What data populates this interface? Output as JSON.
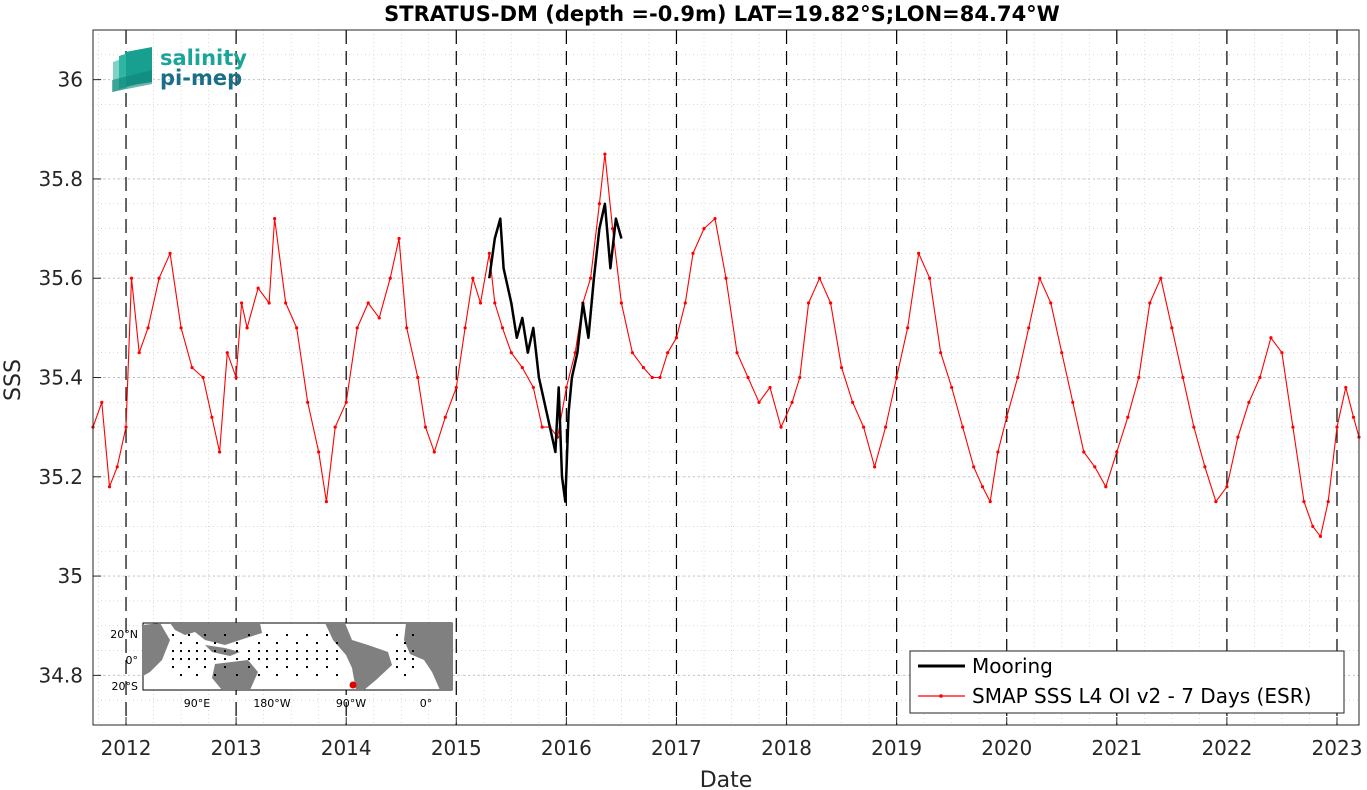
{
  "chart_data": {
    "type": "line",
    "title": "STRATUS-DM (depth =-0.9m) LAT=19.82°S;LON=84.74°W",
    "xlabel": "Date",
    "ylabel": "SSS",
    "xlim": [
      2011.7,
      2023.2
    ],
    "ylim": [
      34.7,
      36.1
    ],
    "x_ticks": [
      2012,
      2013,
      2014,
      2015,
      2016,
      2017,
      2018,
      2019,
      2020,
      2021,
      2022,
      2023
    ],
    "x_tick_labels": [
      "2012",
      "2013",
      "2014",
      "2015",
      "2016",
      "2017",
      "2018",
      "2019",
      "2020",
      "2021",
      "2022",
      "2023"
    ],
    "y_ticks": [
      34.8,
      35,
      35.2,
      35.4,
      35.6,
      35.8,
      36
    ],
    "y_tick_labels": [
      "34.8",
      "35",
      "35.2",
      "35.4",
      "35.6",
      "35.8",
      "36"
    ],
    "grid": true,
    "year_lines": "dashed",
    "legend_position": "bottom-right",
    "series": [
      {
        "name": "Mooring",
        "color": "#000000",
        "x": [
          2015.3,
          2015.35,
          2015.4,
          2015.43,
          2015.47,
          2015.5,
          2015.55,
          2015.6,
          2015.65,
          2015.7,
          2015.75,
          2015.8,
          2015.85,
          2015.9,
          2015.93,
          2015.96,
          2015.99,
          2016.02,
          2016.05,
          2016.1,
          2016.15,
          2016.2,
          2016.25,
          2016.3,
          2016.35,
          2016.4,
          2016.45,
          2016.5
        ],
        "y": [
          35.6,
          35.68,
          35.72,
          35.62,
          35.58,
          35.55,
          35.48,
          35.52,
          35.45,
          35.5,
          35.4,
          35.35,
          35.3,
          35.25,
          35.38,
          35.2,
          35.15,
          35.33,
          35.4,
          35.45,
          35.55,
          35.48,
          35.6,
          35.7,
          35.75,
          35.62,
          35.72,
          35.68
        ]
      },
      {
        "name": "SMAP SSS L4 OI v2 - 7 Days (ESR)",
        "color": "#ff0000",
        "x": [
          2011.7,
          2011.78,
          2011.85,
          2011.92,
          2012.0,
          2012.05,
          2012.12,
          2012.2,
          2012.3,
          2012.4,
          2012.5,
          2012.6,
          2012.7,
          2012.78,
          2012.85,
          2012.92,
          2013.0,
          2013.05,
          2013.1,
          2013.2,
          2013.3,
          2013.35,
          2013.45,
          2013.55,
          2013.65,
          2013.75,
          2013.82,
          2013.9,
          2014.0,
          2014.1,
          2014.2,
          2014.3,
          2014.4,
          2014.48,
          2014.55,
          2014.65,
          2014.72,
          2014.8,
          2014.9,
          2015.0,
          2015.08,
          2015.15,
          2015.22,
          2015.3,
          2015.35,
          2015.42,
          2015.5,
          2015.6,
          2015.7,
          2015.78,
          2015.85,
          2015.92,
          2016.0,
          2016.08,
          2016.15,
          2016.22,
          2016.3,
          2016.35,
          2016.42,
          2016.5,
          2016.6,
          2016.7,
          2016.78,
          2016.85,
          2016.92,
          2017.0,
          2017.08,
          2017.15,
          2017.25,
          2017.35,
          2017.45,
          2017.55,
          2017.65,
          2017.75,
          2017.85,
          2017.95,
          2018.05,
          2018.12,
          2018.2,
          2018.3,
          2018.4,
          2018.5,
          2018.6,
          2018.7,
          2018.8,
          2018.9,
          2019.0,
          2019.1,
          2019.2,
          2019.3,
          2019.4,
          2019.5,
          2019.6,
          2019.7,
          2019.78,
          2019.85,
          2019.92,
          2020.0,
          2020.1,
          2020.2,
          2020.3,
          2020.4,
          2020.5,
          2020.6,
          2020.7,
          2020.8,
          2020.9,
          2021.0,
          2021.1,
          2021.2,
          2021.3,
          2021.4,
          2021.5,
          2021.6,
          2021.7,
          2021.8,
          2021.9,
          2022.0,
          2022.1,
          2022.2,
          2022.3,
          2022.4,
          2022.5,
          2022.6,
          2022.7,
          2022.78,
          2022.85,
          2022.92,
          2023.0,
          2023.08,
          2023.15,
          2023.2
        ],
        "y": [
          35.3,
          35.35,
          35.18,
          35.22,
          35.3,
          35.6,
          35.45,
          35.5,
          35.6,
          35.65,
          35.5,
          35.42,
          35.4,
          35.32,
          35.25,
          35.45,
          35.4,
          35.55,
          35.5,
          35.58,
          35.55,
          35.72,
          35.55,
          35.5,
          35.35,
          35.25,
          35.15,
          35.3,
          35.35,
          35.5,
          35.55,
          35.52,
          35.6,
          35.68,
          35.5,
          35.4,
          35.3,
          35.25,
          35.32,
          35.38,
          35.5,
          35.6,
          35.55,
          35.65,
          35.55,
          35.5,
          35.45,
          35.42,
          35.38,
          35.3,
          35.3,
          35.28,
          35.38,
          35.45,
          35.55,
          35.6,
          35.75,
          35.85,
          35.7,
          35.55,
          35.45,
          35.42,
          35.4,
          35.4,
          35.45,
          35.48,
          35.55,
          35.65,
          35.7,
          35.72,
          35.6,
          35.45,
          35.4,
          35.35,
          35.38,
          35.3,
          35.35,
          35.4,
          35.55,
          35.6,
          35.55,
          35.42,
          35.35,
          35.3,
          35.22,
          35.3,
          35.4,
          35.5,
          35.65,
          35.6,
          35.45,
          35.38,
          35.3,
          35.22,
          35.18,
          35.15,
          35.25,
          35.32,
          35.4,
          35.5,
          35.6,
          35.55,
          35.45,
          35.35,
          35.25,
          35.22,
          35.18,
          35.25,
          35.32,
          35.4,
          35.55,
          35.6,
          35.5,
          35.4,
          35.3,
          35.22,
          35.15,
          35.18,
          35.28,
          35.35,
          35.4,
          35.48,
          35.45,
          35.3,
          35.15,
          35.1,
          35.08,
          35.15,
          35.3,
          35.38,
          35.32,
          35.28
        ]
      }
    ]
  },
  "logo": {
    "line1": "salinity",
    "line2": "pi-mep"
  },
  "inset_map": {
    "y_labels": [
      "20°N",
      "0°",
      "20°S"
    ],
    "x_labels": [
      "90°E",
      "180°W",
      "90°W",
      "0°"
    ]
  }
}
